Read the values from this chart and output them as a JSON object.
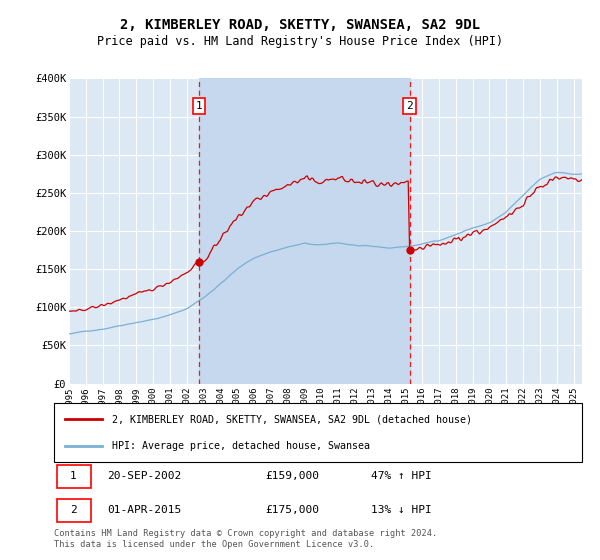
{
  "title": "2, KIMBERLEY ROAD, SKETTY, SWANSEA, SA2 9DL",
  "subtitle": "Price paid vs. HM Land Registry's House Price Index (HPI)",
  "ylim": [
    0,
    400000
  ],
  "yticks": [
    0,
    50000,
    100000,
    150000,
    200000,
    250000,
    300000,
    350000,
    400000
  ],
  "ytick_labels": [
    "£0",
    "£50K",
    "£100K",
    "£150K",
    "£200K",
    "£250K",
    "£300K",
    "£350K",
    "£400K"
  ],
  "xlim_start": 1995.0,
  "xlim_end": 2025.5,
  "plot_bg_color": "#dce9f5",
  "shade_color": "#c5d8ee",
  "grid_color": "#ffffff",
  "red_line_color": "#cc0000",
  "blue_line_color": "#7bafd4",
  "sale1_date_num": 2002.72,
  "sale1_price": 159000,
  "sale1_label": "1",
  "sale1_date_str": "20-SEP-2002",
  "sale1_price_str": "£159,000",
  "sale1_hpi_str": "47% ↑ HPI",
  "sale2_date_num": 2015.25,
  "sale2_price": 175000,
  "sale2_label": "2",
  "sale2_date_str": "01-APR-2015",
  "sale2_price_str": "£175,000",
  "sale2_hpi_str": "13% ↓ HPI",
  "legend_line1": "2, KIMBERLEY ROAD, SKETTY, SWANSEA, SA2 9DL (detached house)",
  "legend_line2": "HPI: Average price, detached house, Swansea",
  "footer": "Contains HM Land Registry data © Crown copyright and database right 2024.\nThis data is licensed under the Open Government Licence v3.0."
}
